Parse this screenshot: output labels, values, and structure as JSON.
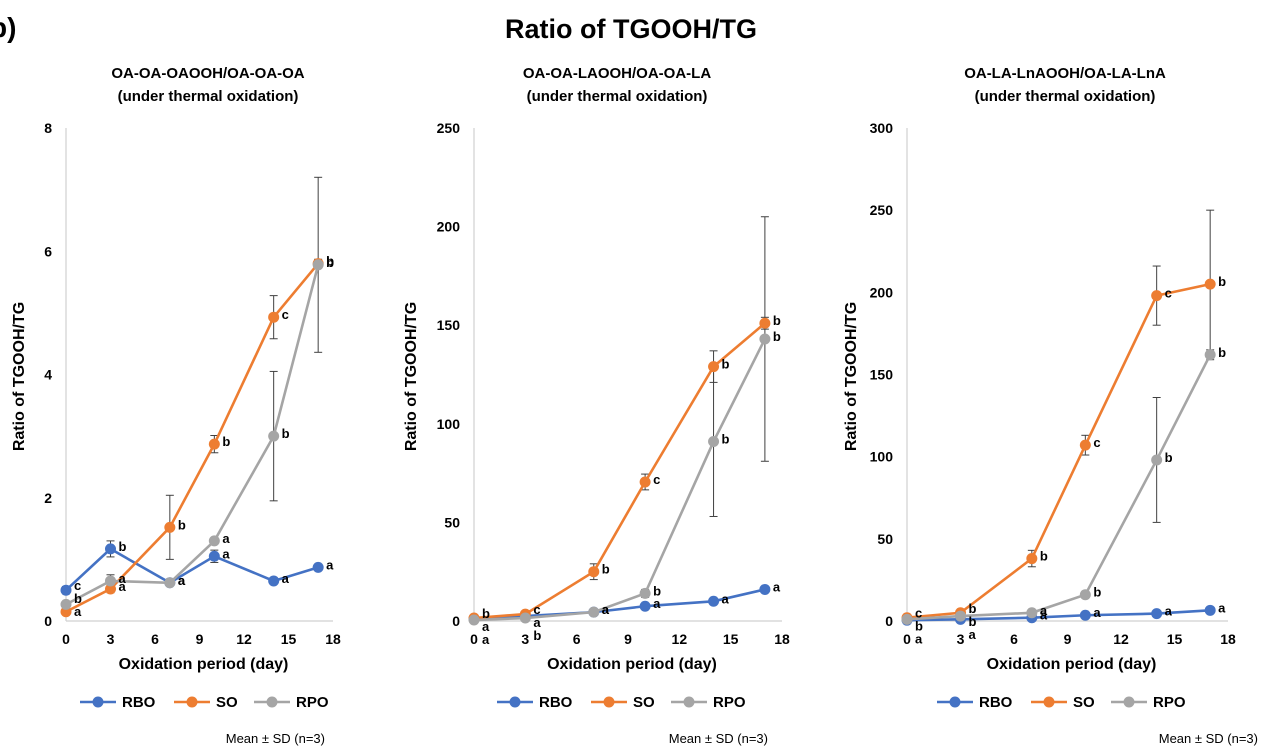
{
  "panel_label": "b)",
  "figure_title": "Ratio of TGOOH/TG",
  "colors": {
    "RBO": "#4472C4",
    "SO": "#ED7D31",
    "RPO": "#A5A5A5",
    "error_bar": "#404040",
    "axis": "#d0d0d0"
  },
  "chart_data": [
    {
      "type": "line",
      "title": "OA-OA-OAOOH/OA-OA-OA",
      "subtitle": "(under thermal oxidation)",
      "xlabel": "Oxidation period (day)",
      "ylabel": "Ratio of TGOOH/TG",
      "xlim": [
        0,
        18
      ],
      "ylim": [
        0,
        8
      ],
      "xticks": [
        0,
        3,
        6,
        9,
        12,
        15,
        18
      ],
      "yticks": [
        0,
        2,
        4,
        6,
        8
      ],
      "grid": false,
      "legend_position": "bottom",
      "note": "Mean ± SD  (n=3)",
      "x": [
        0,
        3,
        7,
        10,
        14,
        17
      ],
      "series": [
        {
          "name": "RBO",
          "values": [
            0.5,
            1.17,
            0.62,
            1.05,
            0.65,
            0.87
          ],
          "errors": [
            0.06,
            0.13,
            0.05,
            0.1,
            0.04,
            0.05
          ],
          "letters": [
            "c",
            "b",
            "a",
            "a",
            "a",
            "a"
          ]
        },
        {
          "name": "SO",
          "values": [
            0.15,
            0.52,
            1.52,
            2.87,
            4.93,
            5.8
          ],
          "errors": [
            0.03,
            0.06,
            0.52,
            0.14,
            0.35,
            0.07
          ],
          "letters": [
            "a",
            "a",
            "b",
            "b",
            "c",
            "b"
          ]
        },
        {
          "name": "RPO",
          "values": [
            0.27,
            0.65,
            0.62,
            1.3,
            3.0,
            5.78
          ],
          "errors": [
            0.05,
            0.1,
            0.05,
            0.05,
            1.05,
            1.42
          ],
          "letters": [
            "b",
            "a",
            "a",
            "a",
            "b",
            "b"
          ]
        }
      ]
    },
    {
      "type": "line",
      "title": "OA-OA-LAOOH/OA-OA-LA",
      "subtitle": "(under thermal oxidation)",
      "xlabel": "Oxidation period (day)",
      "ylabel": "Ratio of TGOOH/TG",
      "xlim": [
        0,
        18
      ],
      "ylim": [
        0,
        250
      ],
      "xticks": [
        0,
        3,
        6,
        9,
        12,
        15,
        18
      ],
      "yticks": [
        0,
        50,
        100,
        150,
        200,
        250
      ],
      "grid": false,
      "legend_position": "bottom",
      "note": "Mean ± SD  (n=3)",
      "x": [
        0,
        3,
        7,
        10,
        14,
        17
      ],
      "series": [
        {
          "name": "RBO",
          "values": [
            1.0,
            2.5,
            4.5,
            7.5,
            10.0,
            16.0
          ],
          "errors": [
            0.2,
            0.4,
            0.5,
            0.8,
            0.8,
            1.0
          ],
          "letters": [
            "a",
            "a",
            "a",
            "a",
            "a",
            "a"
          ]
        },
        {
          "name": "SO",
          "values": [
            1.5,
            3.5,
            25.0,
            70.5,
            129.0,
            151.0
          ],
          "errors": [
            0.4,
            0.6,
            4.0,
            4.0,
            8.0,
            3.0
          ],
          "letters": [
            "b",
            "c",
            "b",
            "c",
            "b",
            "b"
          ]
        },
        {
          "name": "RPO",
          "values": [
            0.5,
            1.5,
            4.5,
            14.0,
            91.0,
            143.0
          ],
          "errors": [
            0.2,
            0.3,
            0.5,
            2.0,
            38.0,
            62.0
          ],
          "letters": [
            "a",
            "b",
            "a",
            "b",
            "b",
            "b"
          ]
        }
      ]
    },
    {
      "type": "line",
      "title": "OA-LA-LnAOOH/OA-LA-LnA",
      "subtitle": "(under thermal oxidation)",
      "xlabel": "Oxidation period (day)",
      "ylabel": "Ratio of TGOOH/TG",
      "xlim": [
        0,
        18
      ],
      "ylim": [
        0,
        300
      ],
      "xticks": [
        0,
        3,
        6,
        9,
        12,
        15,
        18
      ],
      "yticks": [
        0,
        50,
        100,
        150,
        200,
        250,
        300
      ],
      "grid": false,
      "legend_position": "bottom",
      "note": "Mean ± SD  (n=3)",
      "x": [
        0,
        3,
        7,
        10,
        14,
        17
      ],
      "series": [
        {
          "name": "RBO",
          "values": [
            0.5,
            1.0,
            2.0,
            3.5,
            4.5,
            6.5
          ],
          "errors": [
            0.2,
            0.3,
            0.3,
            0.5,
            0.5,
            0.8
          ],
          "letters": [
            "a",
            "a",
            "a",
            "a",
            "a",
            "a"
          ]
        },
        {
          "name": "SO",
          "values": [
            2.0,
            5.0,
            38.0,
            107.0,
            198.0,
            205.0
          ],
          "errors": [
            0.5,
            1.0,
            5.0,
            6.0,
            18.0,
            45.0
          ],
          "letters": [
            "c",
            "b",
            "b",
            "c",
            "c",
            "b"
          ]
        },
        {
          "name": "RPO",
          "values": [
            1.0,
            3.0,
            5.0,
            16.0,
            98.0,
            162.0
          ],
          "errors": [
            0.3,
            0.5,
            0.8,
            2.0,
            38.0,
            3.0
          ],
          "letters": [
            "b",
            "b",
            "a",
            "b",
            "b",
            "b"
          ]
        }
      ]
    }
  ]
}
